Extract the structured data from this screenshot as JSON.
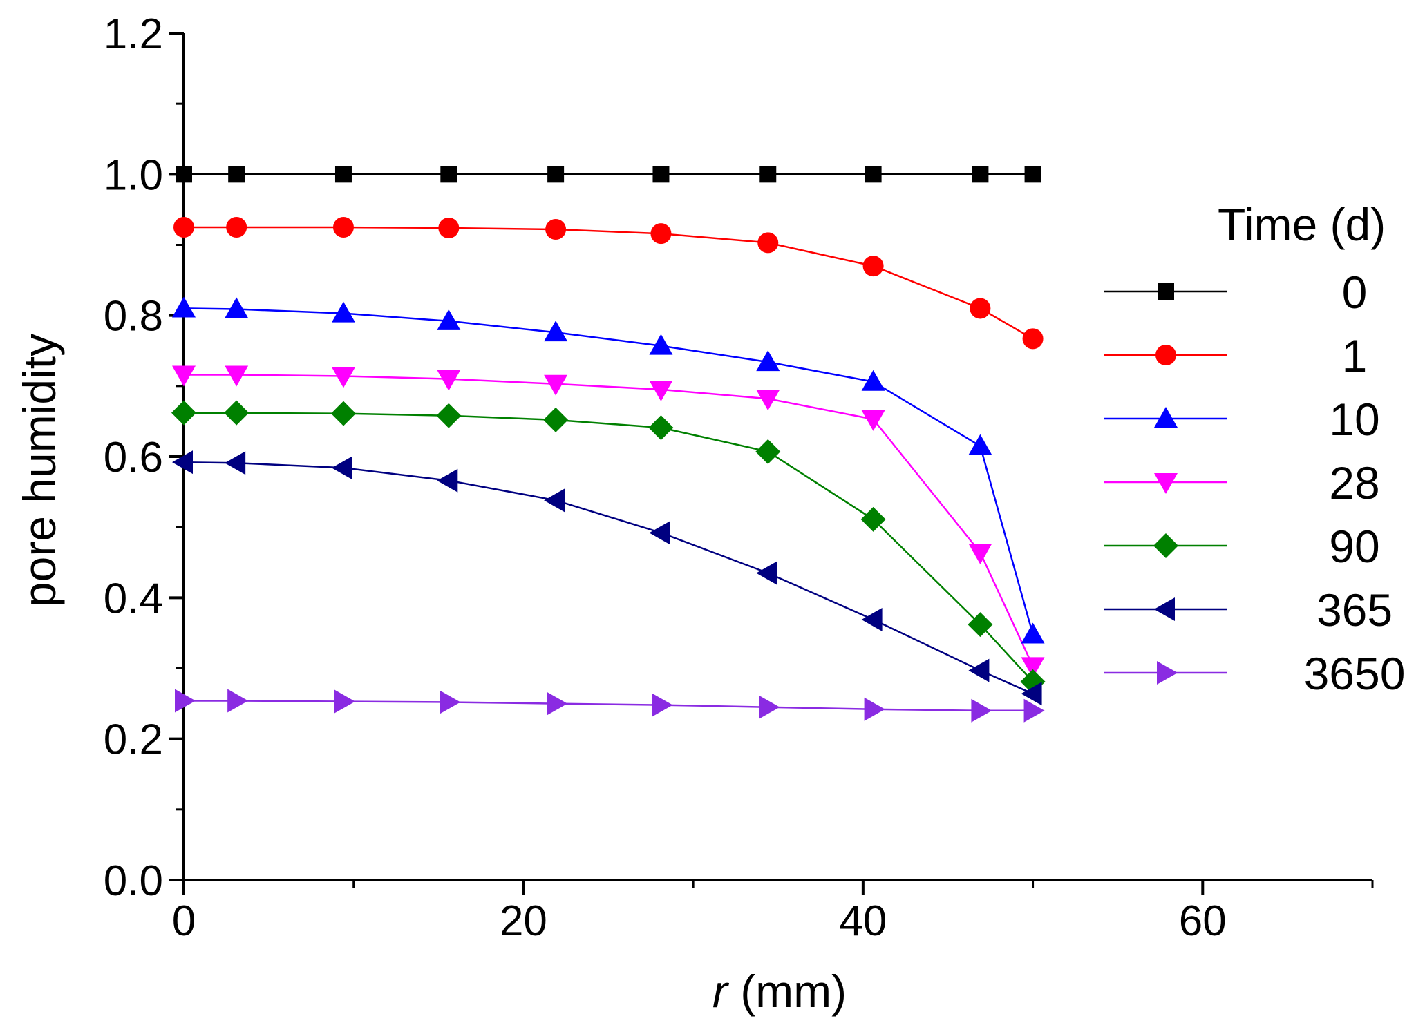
{
  "chart_data": {
    "type": "line",
    "title": "",
    "xlabel_italic": "r",
    "xlabel_rest": " (mm)",
    "ylabel": "pore humidity",
    "xlim": [
      0,
      70
    ],
    "ylim": [
      0.0,
      1.2
    ],
    "x_ticks": [
      0,
      20,
      40,
      60
    ],
    "x_tick_labels": [
      "0",
      "20",
      "40",
      "60"
    ],
    "x_minor_ticks": [
      10,
      30,
      50,
      70
    ],
    "y_ticks": [
      0.0,
      0.2,
      0.4,
      0.6,
      0.8,
      1.0,
      1.2
    ],
    "y_tick_labels": [
      "0.0",
      "0.2",
      "0.4",
      "0.6",
      "0.8",
      "1.0",
      "1.2"
    ],
    "y_minor_ticks": [
      0.1,
      0.3,
      0.5,
      0.7,
      0.9,
      1.1
    ],
    "grid": false,
    "legend_title": "Time (d)",
    "legend_position": "right",
    "x": [
      0,
      3.1,
      9.4,
      15.6,
      21.9,
      28.1,
      34.4,
      40.6,
      46.9,
      50
    ],
    "series": [
      {
        "name": "0",
        "color": "#000000",
        "marker": "square",
        "values": [
          1.0,
          1.0,
          1.0,
          1.0,
          1.0,
          1.0,
          1.0,
          1.0,
          1.0,
          1.0
        ]
      },
      {
        "name": "1",
        "color": "#ff0000",
        "marker": "circle",
        "values": [
          0.925,
          0.925,
          0.925,
          0.924,
          0.922,
          0.916,
          0.903,
          0.87,
          0.81,
          0.767
        ]
      },
      {
        "name": "10",
        "color": "#0000ff",
        "marker": "triangle-up",
        "values": [
          0.81,
          0.809,
          0.803,
          0.792,
          0.776,
          0.757,
          0.734,
          0.706,
          0.615,
          0.348
        ]
      },
      {
        "name": "28",
        "color": "#ff00ff",
        "marker": "triangle-down",
        "values": [
          0.716,
          0.716,
          0.714,
          0.71,
          0.703,
          0.695,
          0.682,
          0.653,
          0.464,
          0.303
        ]
      },
      {
        "name": "90",
        "color": "#008000",
        "marker": "diamond",
        "values": [
          0.662,
          0.662,
          0.661,
          0.658,
          0.652,
          0.641,
          0.607,
          0.511,
          0.362,
          0.281
        ]
      },
      {
        "name": "365",
        "color": "#000080",
        "marker": "triangle-left",
        "values": [
          0.592,
          0.591,
          0.584,
          0.566,
          0.538,
          0.492,
          0.435,
          0.369,
          0.297,
          0.264
        ]
      },
      {
        "name": "3650",
        "color": "#8a2be2",
        "marker": "triangle-right",
        "values": [
          0.254,
          0.254,
          0.253,
          0.252,
          0.25,
          0.248,
          0.245,
          0.242,
          0.24,
          0.24
        ]
      }
    ]
  }
}
